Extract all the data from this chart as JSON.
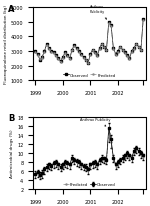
{
  "title_A": "A",
  "title_B": "B",
  "annotation_A": "Anthrax\nPublicity",
  "annotation_B": "Anthrax Publicity",
  "ylabel_A": "Fluoroquinolone retail distribution (kg)",
  "ylabel_B": "Antimicrobial drugs (%)",
  "ylim_A": [
    1000,
    6000
  ],
  "ylim_B": [
    2,
    18
  ],
  "yticks_A": [
    1000,
    2000,
    3000,
    4000,
    5000,
    6000
  ],
  "yticks_B": [
    2,
    4,
    6,
    8,
    10,
    12,
    14,
    16,
    18
  ],
  "xtick_positions": [
    0,
    12,
    24,
    36,
    47
  ],
  "xtick_labels": [
    "1999",
    "2000",
    "2001",
    "2002",
    ""
  ],
  "legend_A": [
    "Observed",
    "Predicted"
  ],
  "legend_B": [
    "Predicted",
    "Observed"
  ],
  "color_observed": "#000000",
  "color_predicted": "#888888",
  "bg_color": "#ffffff",
  "observed_A": [
    3000,
    2800,
    2400,
    2600,
    3000,
    3500,
    3200,
    3000,
    2900,
    2700,
    2500,
    2300,
    2600,
    2900,
    2700,
    2500,
    3100,
    3400,
    3200,
    3000,
    2800,
    2600,
    2400,
    2200,
    2800,
    3100,
    2900,
    2700,
    3200,
    3500,
    3300,
    3100,
    5000,
    4800,
    3200,
    2800,
    3000,
    3300,
    3100,
    2900,
    2700,
    2500,
    3000,
    3200,
    3500,
    3300,
    3100,
    5200
  ],
  "predicted_A": [
    2900,
    2750,
    2450,
    2550,
    2950,
    3400,
    3150,
    2950,
    2850,
    2650,
    2450,
    2250,
    2550,
    2850,
    2650,
    2450,
    3050,
    3350,
    3150,
    2950,
    2750,
    2550,
    2350,
    2150,
    2750,
    3050,
    2850,
    2650,
    3150,
    3450,
    3250,
    3050,
    4900,
    4700,
    3150,
    2750,
    2950,
    3250,
    3050,
    2850,
    2650,
    2450,
    2950,
    3150,
    3450,
    3250,
    3050,
    5100
  ],
  "observed_B": [
    5.5,
    5.8,
    5.2,
    5.6,
    6.5,
    7.0,
    7.5,
    7.2,
    7.8,
    8.0,
    7.5,
    7.0,
    7.5,
    8.0,
    7.8,
    7.5,
    9.0,
    8.5,
    8.2,
    8.0,
    7.5,
    7.2,
    7.0,
    6.5,
    7.5,
    7.8,
    8.0,
    7.5,
    8.5,
    9.0,
    8.8,
    8.5,
    15.5,
    13.0,
    9.0,
    7.5,
    8.0,
    8.5,
    9.0,
    9.5,
    10.0,
    9.5,
    9.0,
    10.5,
    11.0,
    10.5,
    10.0,
    9.5
  ],
  "predicted_B": [
    5.2,
    5.5,
    5.0,
    5.4,
    6.2,
    6.8,
    7.2,
    6.9,
    7.5,
    7.8,
    7.2,
    6.8,
    7.2,
    7.8,
    7.5,
    7.2,
    8.8,
    8.2,
    8.0,
    7.8,
    7.2,
    7.0,
    6.8,
    6.2,
    7.2,
    7.5,
    7.8,
    7.2,
    8.2,
    8.8,
    8.5,
    8.2,
    14.5,
    12.5,
    8.8,
    7.2,
    7.8,
    8.2,
    8.8,
    9.2,
    9.8,
    9.2,
    8.8,
    10.2,
    10.8,
    10.2,
    9.8,
    9.2
  ],
  "ci_upper_B": [
    6.0,
    6.3,
    5.8,
    6.2,
    7.0,
    7.5,
    7.8,
    7.5,
    8.2,
    8.5,
    7.8,
    7.5,
    7.8,
    8.5,
    8.2,
    7.8,
    9.5,
    9.0,
    8.7,
    8.5,
    7.8,
    7.5,
    7.5,
    6.8,
    7.8,
    8.2,
    8.5,
    7.8,
    8.8,
    9.5,
    9.2,
    8.8,
    16.5,
    14.0,
    9.5,
    7.8,
    8.5,
    8.8,
    9.5,
    9.8,
    10.5,
    9.8,
    9.5,
    11.0,
    11.5,
    11.0,
    10.5,
    9.8
  ],
  "ci_lower_B": [
    4.5,
    4.8,
    4.2,
    4.6,
    5.5,
    6.0,
    6.5,
    6.2,
    6.8,
    7.0,
    6.5,
    6.0,
    6.5,
    7.0,
    6.8,
    6.5,
    8.0,
    7.5,
    7.2,
    7.0,
    6.5,
    6.2,
    6.0,
    5.5,
    6.5,
    6.8,
    7.0,
    6.5,
    7.5,
    8.0,
    7.8,
    7.5,
    12.5,
    11.0,
    8.0,
    6.5,
    7.0,
    7.5,
    8.0,
    8.5,
    9.0,
    8.5,
    8.0,
    9.5,
    10.0,
    9.5,
    9.0,
    8.5
  ]
}
